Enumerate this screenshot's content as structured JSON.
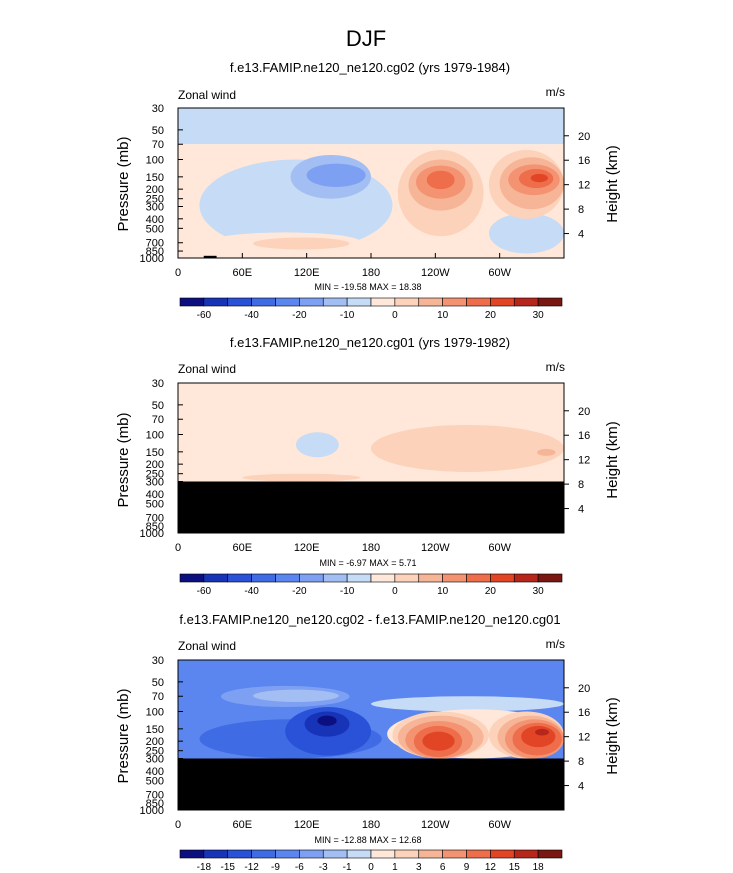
{
  "figure_title": "DJF",
  "colors": {
    "b60": "#0b0f80",
    "b50": "#1733b8",
    "b40": "#2a52d8",
    "b30": "#3f6be5",
    "b20": "#5b86ef",
    "b15": "#7ea0f2",
    "b10": "#a2bef3",
    "b5": "#c6dbf5",
    "p0": "#ffe8d9",
    "p5": "#fcd2bb",
    "p10": "#f7b597",
    "p15": "#f39372",
    "p20": "#ee6d4b",
    "p25": "#e14525",
    "p30": "#b7261a",
    "p35": "#7a1712",
    "ground": "#000000"
  },
  "chart_data": [
    {
      "type": "contour",
      "title": "f.e13.FAMIP.ne120_ne120.cg02 (yrs 1979-1984)",
      "left_label": "Zonal wind",
      "units": "m/s",
      "ylabel": "Pressure (mb)",
      "y2label": "Height (km)",
      "pressure_ticks": [
        "30",
        "50",
        "70",
        "100",
        "150",
        "200",
        "250",
        "300",
        "400",
        "500",
        "700",
        "850",
        "1000"
      ],
      "height_ticks": [
        "20",
        "16",
        "12",
        "8",
        "4"
      ],
      "x_ticks": [
        "0",
        "60E",
        "120E",
        "180",
        "120W",
        "60W"
      ],
      "ylim": [
        1000,
        30
      ],
      "xlim": [
        0,
        360
      ],
      "min_max": "MIN = -19.58  MAX = 18.38",
      "colorbar_labels": [
        "-60",
        "-40",
        "-20",
        "-10",
        "0",
        "10",
        "20",
        "30"
      ],
      "regions": [
        {
          "level": "b5",
          "lon": [
            0,
            360
          ],
          "p": [
            30,
            70
          ]
        },
        {
          "level": "p0",
          "lon": [
            0,
            360
          ],
          "p": [
            70,
            1000
          ]
        },
        {
          "level": "b5",
          "lon": [
            20,
            200
          ],
          "p": [
            100,
            850
          ]
        },
        {
          "level": "b5",
          "lon": [
            290,
            360
          ],
          "p": [
            350,
            900
          ]
        },
        {
          "level": "p0",
          "lon": [
            30,
            170
          ],
          "p": [
            550,
            850
          ]
        },
        {
          "level": "p5",
          "lon": [
            70,
            160
          ],
          "p": [
            620,
            820
          ]
        },
        {
          "level": "b10",
          "lon": [
            105,
            180
          ],
          "p": [
            90,
            250
          ]
        },
        {
          "level": "b15",
          "lon": [
            120,
            175
          ],
          "p": [
            110,
            190
          ]
        },
        {
          "level": "p5",
          "lon": [
            205,
            285
          ],
          "p": [
            80,
            600
          ]
        },
        {
          "level": "p10",
          "lon": [
            215,
            275
          ],
          "p": [
            100,
            330
          ]
        },
        {
          "level": "p15",
          "lon": [
            222,
            268
          ],
          "p": [
            115,
            250
          ]
        },
        {
          "level": "p20",
          "lon": [
            232,
            258
          ],
          "p": [
            130,
            200
          ]
        },
        {
          "level": "p5",
          "lon": [
            290,
            360
          ],
          "p": [
            80,
            400
          ]
        },
        {
          "level": "p10",
          "lon": [
            300,
            360
          ],
          "p": [
            95,
            320
          ]
        },
        {
          "level": "p15",
          "lon": [
            308,
            356
          ],
          "p": [
            112,
            230
          ]
        },
        {
          "level": "p20",
          "lon": [
            318,
            350
          ],
          "p": [
            125,
            195
          ]
        },
        {
          "level": "p25",
          "lon": [
            329,
            345
          ],
          "p": [
            140,
            170
          ]
        },
        {
          "level": "ground",
          "lon": [
            24,
            36
          ],
          "p": [
            950,
            1000
          ]
        }
      ]
    },
    {
      "type": "contour",
      "title": "f.e13.FAMIP.ne120_ne120.cg01 (yrs 1979-1982)",
      "left_label": "Zonal wind",
      "units": "m/s",
      "ylabel": "Pressure (mb)",
      "y2label": "Height (km)",
      "pressure_ticks": [
        "30",
        "50",
        "70",
        "100",
        "150",
        "200",
        "250",
        "300",
        "400",
        "500",
        "700",
        "850",
        "1000"
      ],
      "height_ticks": [
        "20",
        "16",
        "12",
        "8",
        "4"
      ],
      "x_ticks": [
        "0",
        "60E",
        "120E",
        "180",
        "120W",
        "60W"
      ],
      "ylim": [
        1000,
        30
      ],
      "xlim": [
        0,
        360
      ],
      "min_max": "MIN =  -6.97  MAX =   5.71",
      "colorbar_labels": [
        "-60",
        "-40",
        "-20",
        "-10",
        "0",
        "10",
        "20",
        "30"
      ],
      "regions": [
        {
          "level": "p0",
          "lon": [
            0,
            360
          ],
          "p": [
            30,
            300
          ]
        },
        {
          "level": "b5",
          "lon": [
            110,
            150
          ],
          "p": [
            95,
            170
          ]
        },
        {
          "level": "p5",
          "lon": [
            180,
            360
          ],
          "p": [
            80,
            240
          ]
        },
        {
          "level": "p10",
          "lon": [
            335,
            352
          ],
          "p": [
            140,
            165
          ]
        },
        {
          "level": "p5",
          "lon": [
            60,
            170
          ],
          "p": [
            250,
            300
          ]
        },
        {
          "level": "ground",
          "lon": [
            0,
            360
          ],
          "p": [
            300,
            1000
          ]
        }
      ]
    },
    {
      "type": "contour",
      "title": "f.e13.FAMIP.ne120_ne120.cg02 - f.e13.FAMIP.ne120_ne120.cg01",
      "left_label": "Zonal wind",
      "units": "m/s",
      "ylabel": "Pressure (mb)",
      "y2label": "Height (km)",
      "pressure_ticks": [
        "30",
        "50",
        "70",
        "100",
        "150",
        "200",
        "250",
        "300",
        "400",
        "500",
        "700",
        "850",
        "1000"
      ],
      "height_ticks": [
        "20",
        "16",
        "12",
        "8",
        "4"
      ],
      "x_ticks": [
        "0",
        "60E",
        "120E",
        "180",
        "120W",
        "60W"
      ],
      "ylim": [
        1000,
        30
      ],
      "xlim": [
        0,
        360
      ],
      "min_max": "MIN = -12.88  MAX =  12.68",
      "colorbar_labels": [
        "-18",
        "-15",
        "-12",
        "-9",
        "-6",
        "-3",
        "-1",
        "0",
        "1",
        "3",
        "6",
        "9",
        "12",
        "15",
        "18"
      ],
      "regions": [
        {
          "level": "b20",
          "lon": [
            0,
            360
          ],
          "p": [
            30,
            300
          ]
        },
        {
          "level": "b15",
          "lon": [
            40,
            160
          ],
          "p": [
            55,
            90
          ]
        },
        {
          "level": "b10",
          "lon": [
            70,
            150
          ],
          "p": [
            60,
            80
          ]
        },
        {
          "level": "b5",
          "lon": [
            180,
            360
          ],
          "p": [
            70,
            100
          ]
        },
        {
          "level": "b30",
          "lon": [
            20,
            190
          ],
          "p": [
            120,
            300
          ]
        },
        {
          "level": "b40",
          "lon": [
            100,
            180
          ],
          "p": [
            90,
            280
          ]
        },
        {
          "level": "b50",
          "lon": [
            118,
            160
          ],
          "p": [
            100,
            180
          ]
        },
        {
          "level": "b60",
          "lon": [
            130,
            148
          ],
          "p": [
            110,
            140
          ]
        },
        {
          "level": "p0",
          "lon": [
            195,
            360
          ],
          "p": [
            95,
            300
          ]
        },
        {
          "level": "p5",
          "lon": [
            200,
            290
          ],
          "p": [
            100,
            300
          ]
        },
        {
          "level": "p10",
          "lon": [
            205,
            285
          ],
          "p": [
            110,
            300
          ]
        },
        {
          "level": "p15",
          "lon": [
            212,
            275
          ],
          "p": [
            125,
            300
          ]
        },
        {
          "level": "p20",
          "lon": [
            220,
            265
          ],
          "p": [
            140,
            290
          ]
        },
        {
          "level": "p25",
          "lon": [
            228,
            258
          ],
          "p": [
            160,
            250
          ]
        },
        {
          "level": "p5",
          "lon": [
            290,
            360
          ],
          "p": [
            100,
            300
          ]
        },
        {
          "level": "p10",
          "lon": [
            298,
            360
          ],
          "p": [
            110,
            300
          ]
        },
        {
          "level": "p15",
          "lon": [
            305,
            360
          ],
          "p": [
            120,
            300
          ]
        },
        {
          "level": "p20",
          "lon": [
            312,
            358
          ],
          "p": [
            130,
            280
          ]
        },
        {
          "level": "p25",
          "lon": [
            320,
            352
          ],
          "p": [
            140,
            230
          ]
        },
        {
          "level": "p30",
          "lon": [
            333,
            346
          ],
          "p": [
            150,
            175
          ]
        },
        {
          "level": "ground",
          "lon": [
            0,
            360
          ],
          "p": [
            300,
            1000
          ]
        }
      ]
    }
  ]
}
